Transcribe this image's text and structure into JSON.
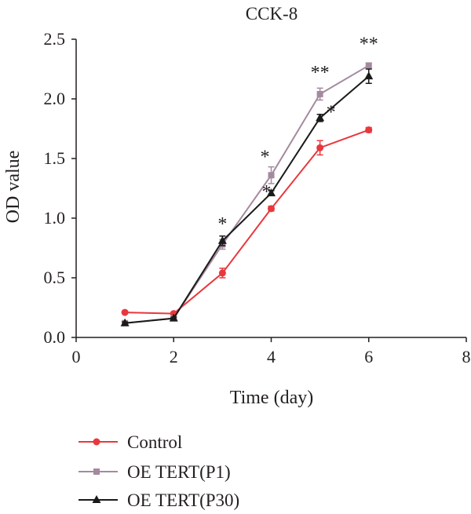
{
  "chart_data": {
    "type": "line",
    "title": "CCK-8",
    "xlabel": "Time (day)",
    "ylabel": "OD value",
    "xlim": [
      0,
      8
    ],
    "ylim": [
      0,
      2.5
    ],
    "xticks": [
      0,
      2,
      4,
      6,
      8
    ],
    "xtick_labels": [
      "0",
      "2",
      "4",
      "6",
      "8"
    ],
    "yticks": [
      0,
      0.5,
      1.0,
      1.5,
      2.0,
      2.5
    ],
    "ytick_labels": [
      "0.0",
      "0.5",
      "1.0",
      "1.5",
      "2.0",
      "2.5"
    ],
    "grid": false,
    "legend_position": "bottom",
    "series": [
      {
        "name": "Control",
        "color": "#e8383d",
        "marker": "circle",
        "x": [
          1,
          2,
          3,
          4,
          5,
          6
        ],
        "y": [
          0.21,
          0.2,
          0.54,
          1.08,
          1.59,
          1.74
        ],
        "err": [
          0.01,
          0.01,
          0.04,
          0.02,
          0.06,
          0.02
        ]
      },
      {
        "name": "OE TERT(P1)",
        "color": "#a48a9e",
        "marker": "square",
        "x": [
          1,
          2,
          3,
          4,
          5,
          6
        ],
        "y": [
          0.12,
          0.16,
          0.78,
          1.36,
          2.04,
          2.28
        ],
        "err": [
          0.01,
          0.01,
          0.04,
          0.07,
          0.05,
          0.02
        ]
      },
      {
        "name": "OE TERT(P30)",
        "color": "#1a1a1a",
        "marker": "triangle",
        "x": [
          1,
          2,
          3,
          4,
          5,
          6
        ],
        "y": [
          0.12,
          0.16,
          0.81,
          1.21,
          1.84,
          2.19
        ],
        "err": [
          0.01,
          0.01,
          0.04,
          0.02,
          0.03,
          0.06
        ]
      }
    ],
    "annotations": [
      {
        "text": "*",
        "x": 3,
        "y": 0.81
      },
      {
        "text": "*",
        "x": 4,
        "y": 1.36
      },
      {
        "text": "*",
        "x": 4,
        "y": 1.21
      },
      {
        "text": "**",
        "x": 5,
        "y": 2.04
      },
      {
        "text": "*",
        "x": 5,
        "y": 1.84
      },
      {
        "text": "**",
        "x": 6,
        "y": 2.28
      }
    ]
  }
}
